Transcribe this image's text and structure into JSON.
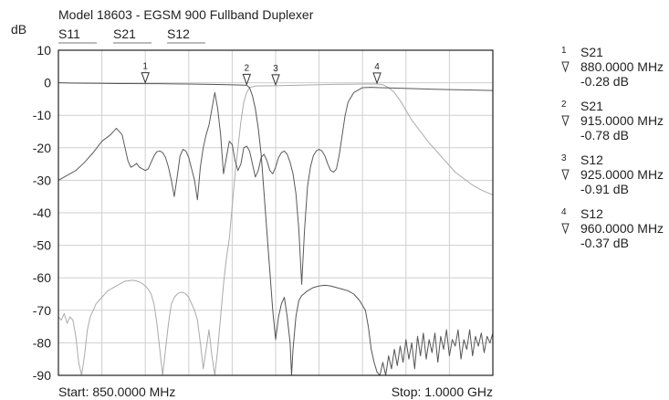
{
  "chart_data": {
    "type": "line",
    "title": "Model 18603 - EGSM 900 Fullband Duplexer",
    "ylabel": "dB",
    "xlabel": "",
    "x_unit": "MHz",
    "xlim": [
      850,
      1000
    ],
    "ylim": [
      -90,
      10
    ],
    "yticks": [
      "10",
      "0",
      "-10",
      "-20",
      "-30",
      "-40",
      "-50",
      "-60",
      "-70",
      "-80",
      "-90"
    ],
    "grid": true,
    "start_label": "Start: 850.0000 MHz",
    "stop_label": "Stop: 1.0000 GHz",
    "legend_labels": [
      "S11",
      "S21",
      "S12"
    ],
    "series": [
      {
        "name": "S11",
        "color": "#5a5a5a",
        "points": [
          [
            850,
            -30
          ],
          [
            853,
            -28.5
          ],
          [
            856,
            -27
          ],
          [
            859,
            -24.5
          ],
          [
            862,
            -21.5
          ],
          [
            865,
            -18
          ],
          [
            868,
            -16
          ],
          [
            870,
            -14
          ],
          [
            872,
            -16
          ],
          [
            873,
            -20
          ],
          [
            874,
            -24
          ],
          [
            875,
            -26
          ],
          [
            876,
            -25.5
          ],
          [
            877,
            -24.8
          ],
          [
            878,
            -26
          ],
          [
            879,
            -26.5
          ],
          [
            880,
            -27
          ],
          [
            881,
            -26.5
          ],
          [
            882,
            -24.5
          ],
          [
            883,
            -22.5
          ],
          [
            884,
            -21.2
          ],
          [
            885,
            -21
          ],
          [
            886,
            -21.5
          ],
          [
            887,
            -23
          ],
          [
            888,
            -26
          ],
          [
            889,
            -30
          ],
          [
            890,
            -35
          ],
          [
            891,
            -29
          ],
          [
            892,
            -22.5
          ],
          [
            893,
            -20.5
          ],
          [
            894,
            -21
          ],
          [
            895,
            -23
          ],
          [
            896,
            -26.5
          ],
          [
            897,
            -30
          ],
          [
            898,
            -36
          ],
          [
            899,
            -26
          ],
          [
            900,
            -20
          ],
          [
            901,
            -16
          ],
          [
            902,
            -13
          ],
          [
            903,
            -8
          ],
          [
            904,
            -3
          ],
          [
            905,
            -8
          ],
          [
            906,
            -16
          ],
          [
            907,
            -28
          ],
          [
            908,
            -23
          ],
          [
            909,
            -18
          ],
          [
            910,
            -19
          ],
          [
            911,
            -24
          ],
          [
            912,
            -27
          ],
          [
            913,
            -25
          ],
          [
            914,
            -20
          ],
          [
            915,
            -19.5
          ],
          [
            916,
            -21
          ],
          [
            917,
            -25
          ],
          [
            918,
            -29
          ],
          [
            919,
            -27
          ],
          [
            920,
            -23
          ],
          [
            921,
            -22
          ],
          [
            922,
            -24
          ],
          [
            923,
            -27
          ],
          [
            924,
            -28
          ],
          [
            925,
            -26
          ],
          [
            926,
            -23
          ],
          [
            927,
            -21.5
          ],
          [
            928,
            -21
          ],
          [
            929,
            -22
          ],
          [
            930,
            -24.5
          ],
          [
            931,
            -28
          ],
          [
            932,
            -34
          ],
          [
            933,
            -45
          ],
          [
            934,
            -62
          ],
          [
            935,
            -45
          ],
          [
            936,
            -32
          ],
          [
            937,
            -26
          ],
          [
            938,
            -22.5
          ],
          [
            939,
            -21
          ],
          [
            940,
            -20.5
          ],
          [
            941,
            -21
          ],
          [
            942,
            -22.5
          ],
          [
            943,
            -25
          ],
          [
            944,
            -27
          ],
          [
            945,
            -27.5
          ],
          [
            946,
            -26.5
          ],
          [
            947,
            -22
          ],
          [
            948,
            -16
          ],
          [
            949,
            -10
          ],
          [
            950,
            -6
          ],
          [
            952,
            -3
          ],
          [
            955,
            -1.5
          ],
          [
            958,
            -1.4
          ],
          [
            961,
            -1.5
          ],
          [
            964,
            -1.6
          ],
          [
            968,
            -1.7
          ],
          [
            972,
            -1.8
          ],
          [
            976,
            -1.9
          ],
          [
            980,
            -2.0
          ],
          [
            985,
            -2.1
          ],
          [
            990,
            -2.2
          ],
          [
            995,
            -2.3
          ],
          [
            1000,
            -2.4
          ]
        ]
      },
      {
        "name": "S21",
        "color": "#555555",
        "points": [
          [
            850,
            0
          ],
          [
            855,
            -0.1
          ],
          [
            860,
            -0.15
          ],
          [
            865,
            -0.2
          ],
          [
            870,
            -0.25
          ],
          [
            875,
            -0.27
          ],
          [
            880,
            -0.28
          ],
          [
            885,
            -0.3
          ],
          [
            890,
            -0.35
          ],
          [
            895,
            -0.4
          ],
          [
            900,
            -0.45
          ],
          [
            905,
            -0.55
          ],
          [
            910,
            -0.65
          ],
          [
            913,
            -0.72
          ],
          [
            915,
            -0.78
          ],
          [
            916,
            -1.5
          ],
          [
            917,
            -4
          ],
          [
            918,
            -8
          ],
          [
            919,
            -14
          ],
          [
            920,
            -22
          ],
          [
            921,
            -34
          ],
          [
            922,
            -46
          ],
          [
            923,
            -58
          ],
          [
            924,
            -70
          ],
          [
            925,
            -79
          ],
          [
            926,
            -72
          ],
          [
            927,
            -68
          ],
          [
            928,
            -66
          ],
          [
            929,
            -72
          ],
          [
            930,
            -80
          ],
          [
            930.5,
            -90
          ],
          [
            931,
            -82
          ],
          [
            932,
            -72
          ],
          [
            933,
            -67
          ],
          [
            934,
            -65.5
          ],
          [
            936,
            -64
          ],
          [
            938,
            -63
          ],
          [
            940,
            -62.5
          ],
          [
            942,
            -62.3
          ],
          [
            944,
            -62.5
          ],
          [
            946,
            -63
          ],
          [
            948,
            -63.5
          ],
          [
            950,
            -64
          ],
          [
            952,
            -65
          ],
          [
            954,
            -67
          ],
          [
            956,
            -70
          ],
          [
            957,
            -75
          ],
          [
            958,
            -82
          ],
          [
            959,
            -86
          ],
          [
            960,
            -89
          ],
          [
            961,
            -90
          ],
          [
            962,
            -86
          ],
          [
            963,
            -90
          ],
          [
            964,
            -84
          ],
          [
            965,
            -88
          ],
          [
            966,
            -82
          ],
          [
            967,
            -87
          ],
          [
            968,
            -81
          ],
          [
            969,
            -86
          ],
          [
            970,
            -79
          ],
          [
            971,
            -85
          ],
          [
            972,
            -80
          ],
          [
            973,
            -88
          ],
          [
            974,
            -78
          ],
          [
            975,
            -84
          ],
          [
            976,
            -77
          ],
          [
            977,
            -85
          ],
          [
            978,
            -79
          ],
          [
            979,
            -83
          ],
          [
            980,
            -77
          ],
          [
            981,
            -86
          ],
          [
            982,
            -78
          ],
          [
            983,
            -82
          ],
          [
            984,
            -76
          ],
          [
            985,
            -84
          ],
          [
            986,
            -79
          ],
          [
            987,
            -81
          ],
          [
            988,
            -76
          ],
          [
            989,
            -85
          ],
          [
            990,
            -79
          ],
          [
            991,
            -82
          ],
          [
            992,
            -76
          ],
          [
            993,
            -84
          ],
          [
            994,
            -78
          ],
          [
            995,
            -81
          ],
          [
            996,
            -77
          ],
          [
            997,
            -83
          ],
          [
            998,
            -78
          ],
          [
            999,
            -80
          ],
          [
            1000,
            -77
          ]
        ]
      },
      {
        "name": "S12",
        "color": "#aaaaaa",
        "points": [
          [
            850,
            -72
          ],
          [
            851,
            -73
          ],
          [
            852,
            -71
          ],
          [
            853,
            -74
          ],
          [
            854,
            -72
          ],
          [
            855,
            -73
          ],
          [
            856,
            -78
          ],
          [
            857,
            -86
          ],
          [
            858,
            -90
          ],
          [
            859,
            -84
          ],
          [
            860,
            -76
          ],
          [
            861,
            -72
          ],
          [
            862,
            -70
          ],
          [
            863,
            -68
          ],
          [
            864,
            -67
          ],
          [
            865,
            -66
          ],
          [
            866,
            -65
          ],
          [
            867,
            -64
          ],
          [
            868,
            -63.5
          ],
          [
            869,
            -63
          ],
          [
            870,
            -62.5
          ],
          [
            871,
            -62
          ],
          [
            872,
            -61.5
          ],
          [
            873,
            -61
          ],
          [
            874,
            -61
          ],
          [
            875,
            -60.8
          ],
          [
            876,
            -60.8
          ],
          [
            877,
            -61
          ],
          [
            878,
            -61.3
          ],
          [
            879,
            -61.8
          ],
          [
            880,
            -62.5
          ],
          [
            881,
            -63.5
          ],
          [
            882,
            -65
          ],
          [
            883,
            -68
          ],
          [
            884,
            -74
          ],
          [
            885,
            -82
          ],
          [
            886,
            -90
          ],
          [
            887,
            -82
          ],
          [
            888,
            -74
          ],
          [
            889,
            -68
          ],
          [
            890,
            -66
          ],
          [
            891,
            -65
          ],
          [
            892,
            -64.5
          ],
          [
            893,
            -64.5
          ],
          [
            894,
            -65
          ],
          [
            895,
            -66
          ],
          [
            896,
            -68
          ],
          [
            897,
            -70
          ],
          [
            898,
            -73
          ],
          [
            899,
            -80
          ],
          [
            900,
            -88
          ],
          [
            901,
            -82
          ],
          [
            902,
            -76
          ],
          [
            903,
            -84
          ],
          [
            904,
            -90
          ],
          [
            905,
            -82
          ],
          [
            906,
            -72
          ],
          [
            907,
            -62
          ],
          [
            908,
            -54
          ],
          [
            909,
            -48
          ],
          [
            910,
            -38
          ],
          [
            911,
            -28
          ],
          [
            912,
            -20
          ],
          [
            913,
            -12
          ],
          [
            914,
            -6
          ],
          [
            915,
            -3
          ],
          [
            916,
            -1.5
          ],
          [
            918,
            -1.0
          ],
          [
            920,
            -0.95
          ],
          [
            925,
            -0.91
          ],
          [
            930,
            -0.8
          ],
          [
            935,
            -0.7
          ],
          [
            940,
            -0.6
          ],
          [
            945,
            -0.5
          ],
          [
            950,
            -0.45
          ],
          [
            955,
            -0.4
          ],
          [
            960,
            -0.37
          ],
          [
            962,
            -0.6
          ],
          [
            964,
            -1.5
          ],
          [
            966,
            -3
          ],
          [
            968,
            -5.5
          ],
          [
            970,
            -8.5
          ],
          [
            972,
            -11.5
          ],
          [
            975,
            -15
          ],
          [
            978,
            -18.5
          ],
          [
            981,
            -21.5
          ],
          [
            984,
            -24.5
          ],
          [
            987,
            -27.5
          ],
          [
            990,
            -29.5
          ],
          [
            993,
            -31.5
          ],
          [
            996,
            -33
          ],
          [
            1000,
            -34.5
          ]
        ]
      }
    ],
    "markers": [
      {
        "id": "1",
        "trace": "S21",
        "x": 880,
        "y": -0.28,
        "freq_label": "880.0000 MHz",
        "value_label": "-0.28 dB"
      },
      {
        "id": "2",
        "trace": "S21",
        "x": 915,
        "y": -0.78,
        "freq_label": "915.0000 MHz",
        "value_label": "-0.78 dB"
      },
      {
        "id": "3",
        "trace": "S12",
        "x": 925,
        "y": -0.91,
        "freq_label": "925.0000 MHz",
        "value_label": "-0.91 dB"
      },
      {
        "id": "4",
        "trace": "S12",
        "x": 960,
        "y": -0.37,
        "freq_label": "960.0000 MHz",
        "value_label": "-0.37 dB"
      }
    ]
  }
}
